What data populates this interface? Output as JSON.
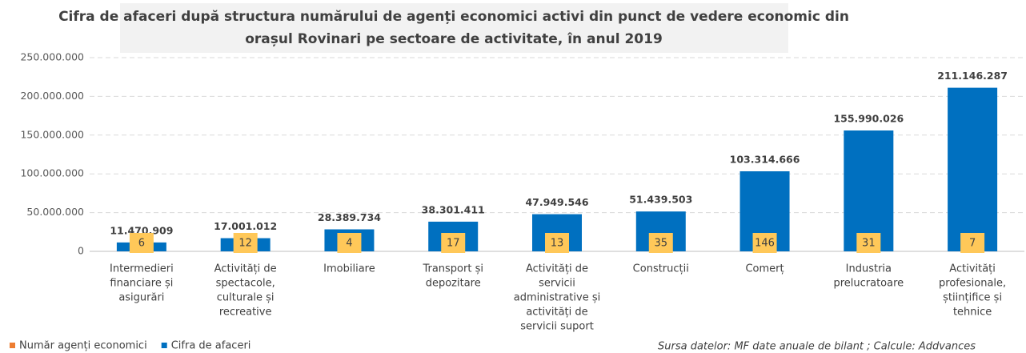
{
  "chart_data": {
    "type": "bar",
    "title": [
      "Cifra de afaceri după structura numărului de agenți economici activi din punct de vedere economic din",
      "orașul Rovinari pe sectoare de activitate, în anul 2019"
    ],
    "categories": [
      [
        "Intermedieri",
        "financiare și",
        "asigurări"
      ],
      [
        "Activități de",
        "spectacole,",
        "culturale și",
        "recreative"
      ],
      [
        "Imobiliare"
      ],
      [
        "Transport și",
        "depozitare"
      ],
      [
        "Activități de",
        "servicii",
        "administrative și",
        "activități de",
        "servicii suport"
      ],
      [
        "Construcții"
      ],
      [
        "Comerț"
      ],
      [
        "Industria",
        "prelucratoare"
      ],
      [
        "Activități",
        "profesionale,",
        "științifice și",
        "tehnice"
      ]
    ],
    "series": [
      {
        "name": "Număr agenți economici",
        "color": "#ed7d31",
        "label_color": "#ffc859",
        "values": [
          6,
          12,
          4,
          17,
          13,
          35,
          146,
          31,
          7
        ]
      },
      {
        "name": "Cifra de afaceri",
        "color": "#0070c0",
        "values": [
          11470909,
          17001012,
          28389734,
          38301411,
          47949546,
          51439503,
          103314666,
          155990026,
          211146287
        ],
        "value_labels": [
          "11.470.909",
          "17.001.012",
          "28.389.734",
          "38.301.411",
          "47.949.546",
          "51.439.503",
          "103.314.666",
          "155.990.026",
          "211.146.287"
        ]
      }
    ],
    "ylim": [
      0,
      250000000
    ],
    "yticks": [
      0,
      {
        "value": 50000000,
        "label": "50.000.000"
      },
      {
        "value": 100000000,
        "label": "100.000.000"
      },
      {
        "value": 150000000,
        "label": "150.000.000"
      },
      {
        "value": 200000000,
        "label": "200.000.000"
      },
      {
        "value": 250000000,
        "label": "250.000.000"
      }
    ],
    "grid": true,
    "legend": "bottom-left",
    "source": "Sursa datelor: MF date anuale de bilant ; Calcule: Addvances"
  }
}
